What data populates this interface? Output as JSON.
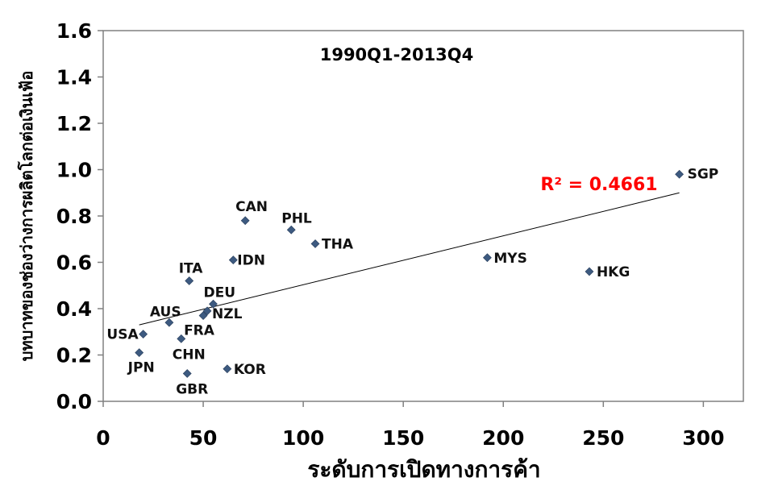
{
  "chart_data": {
    "type": "scatter",
    "title": "1990Q1-2013Q4",
    "xlabel": "ระดับการเปิดทางการค้า",
    "ylabel": "บทบาทของช่องว่างการผลิตโลกต่อเงินเฟ้อ",
    "xlim": [
      0,
      320
    ],
    "ylim": [
      0,
      1.6
    ],
    "xticks": [
      "0",
      "50",
      "100",
      "150",
      "200",
      "250",
      "300"
    ],
    "yticks": [
      "0.0",
      "0.2",
      "0.4",
      "0.6",
      "0.8",
      "1.0",
      "1.2",
      "1.4",
      "1.6"
    ],
    "grid": false,
    "legend": "none",
    "marker_color": "#3d5a80",
    "points": [
      {
        "label": "SGP",
        "x": 288,
        "y": 0.98
      },
      {
        "label": "HKG",
        "x": 243,
        "y": 0.56
      },
      {
        "label": "MYS",
        "x": 192,
        "y": 0.62
      },
      {
        "label": "THA",
        "x": 106,
        "y": 0.68
      },
      {
        "label": "PHL",
        "x": 94,
        "y": 0.74
      },
      {
        "label": "CAN",
        "x": 71,
        "y": 0.78
      },
      {
        "label": "IDN",
        "x": 65,
        "y": 0.61
      },
      {
        "label": "ITA",
        "x": 43,
        "y": 0.52
      },
      {
        "label": "DEU",
        "x": 55,
        "y": 0.42
      },
      {
        "label": "NZL",
        "x": 52,
        "y": 0.39
      },
      {
        "label": "FRA",
        "x": 50,
        "y": 0.37
      },
      {
        "label": "AUS",
        "x": 33,
        "y": 0.34
      },
      {
        "label": "USA",
        "x": 20,
        "y": 0.29
      },
      {
        "label": "CHN",
        "x": 39,
        "y": 0.27
      },
      {
        "label": "JPN",
        "x": 18,
        "y": 0.21
      },
      {
        "label": "KOR",
        "x": 62,
        "y": 0.14
      },
      {
        "label": "GBR",
        "x": 42,
        "y": 0.12
      }
    ],
    "trendline": {
      "x": [
        18,
        288
      ],
      "y": [
        0.33,
        0.9
      ],
      "r2_label": "R² = 0.4661",
      "r2_color": "#ff0000",
      "line_color": "#000000"
    }
  }
}
